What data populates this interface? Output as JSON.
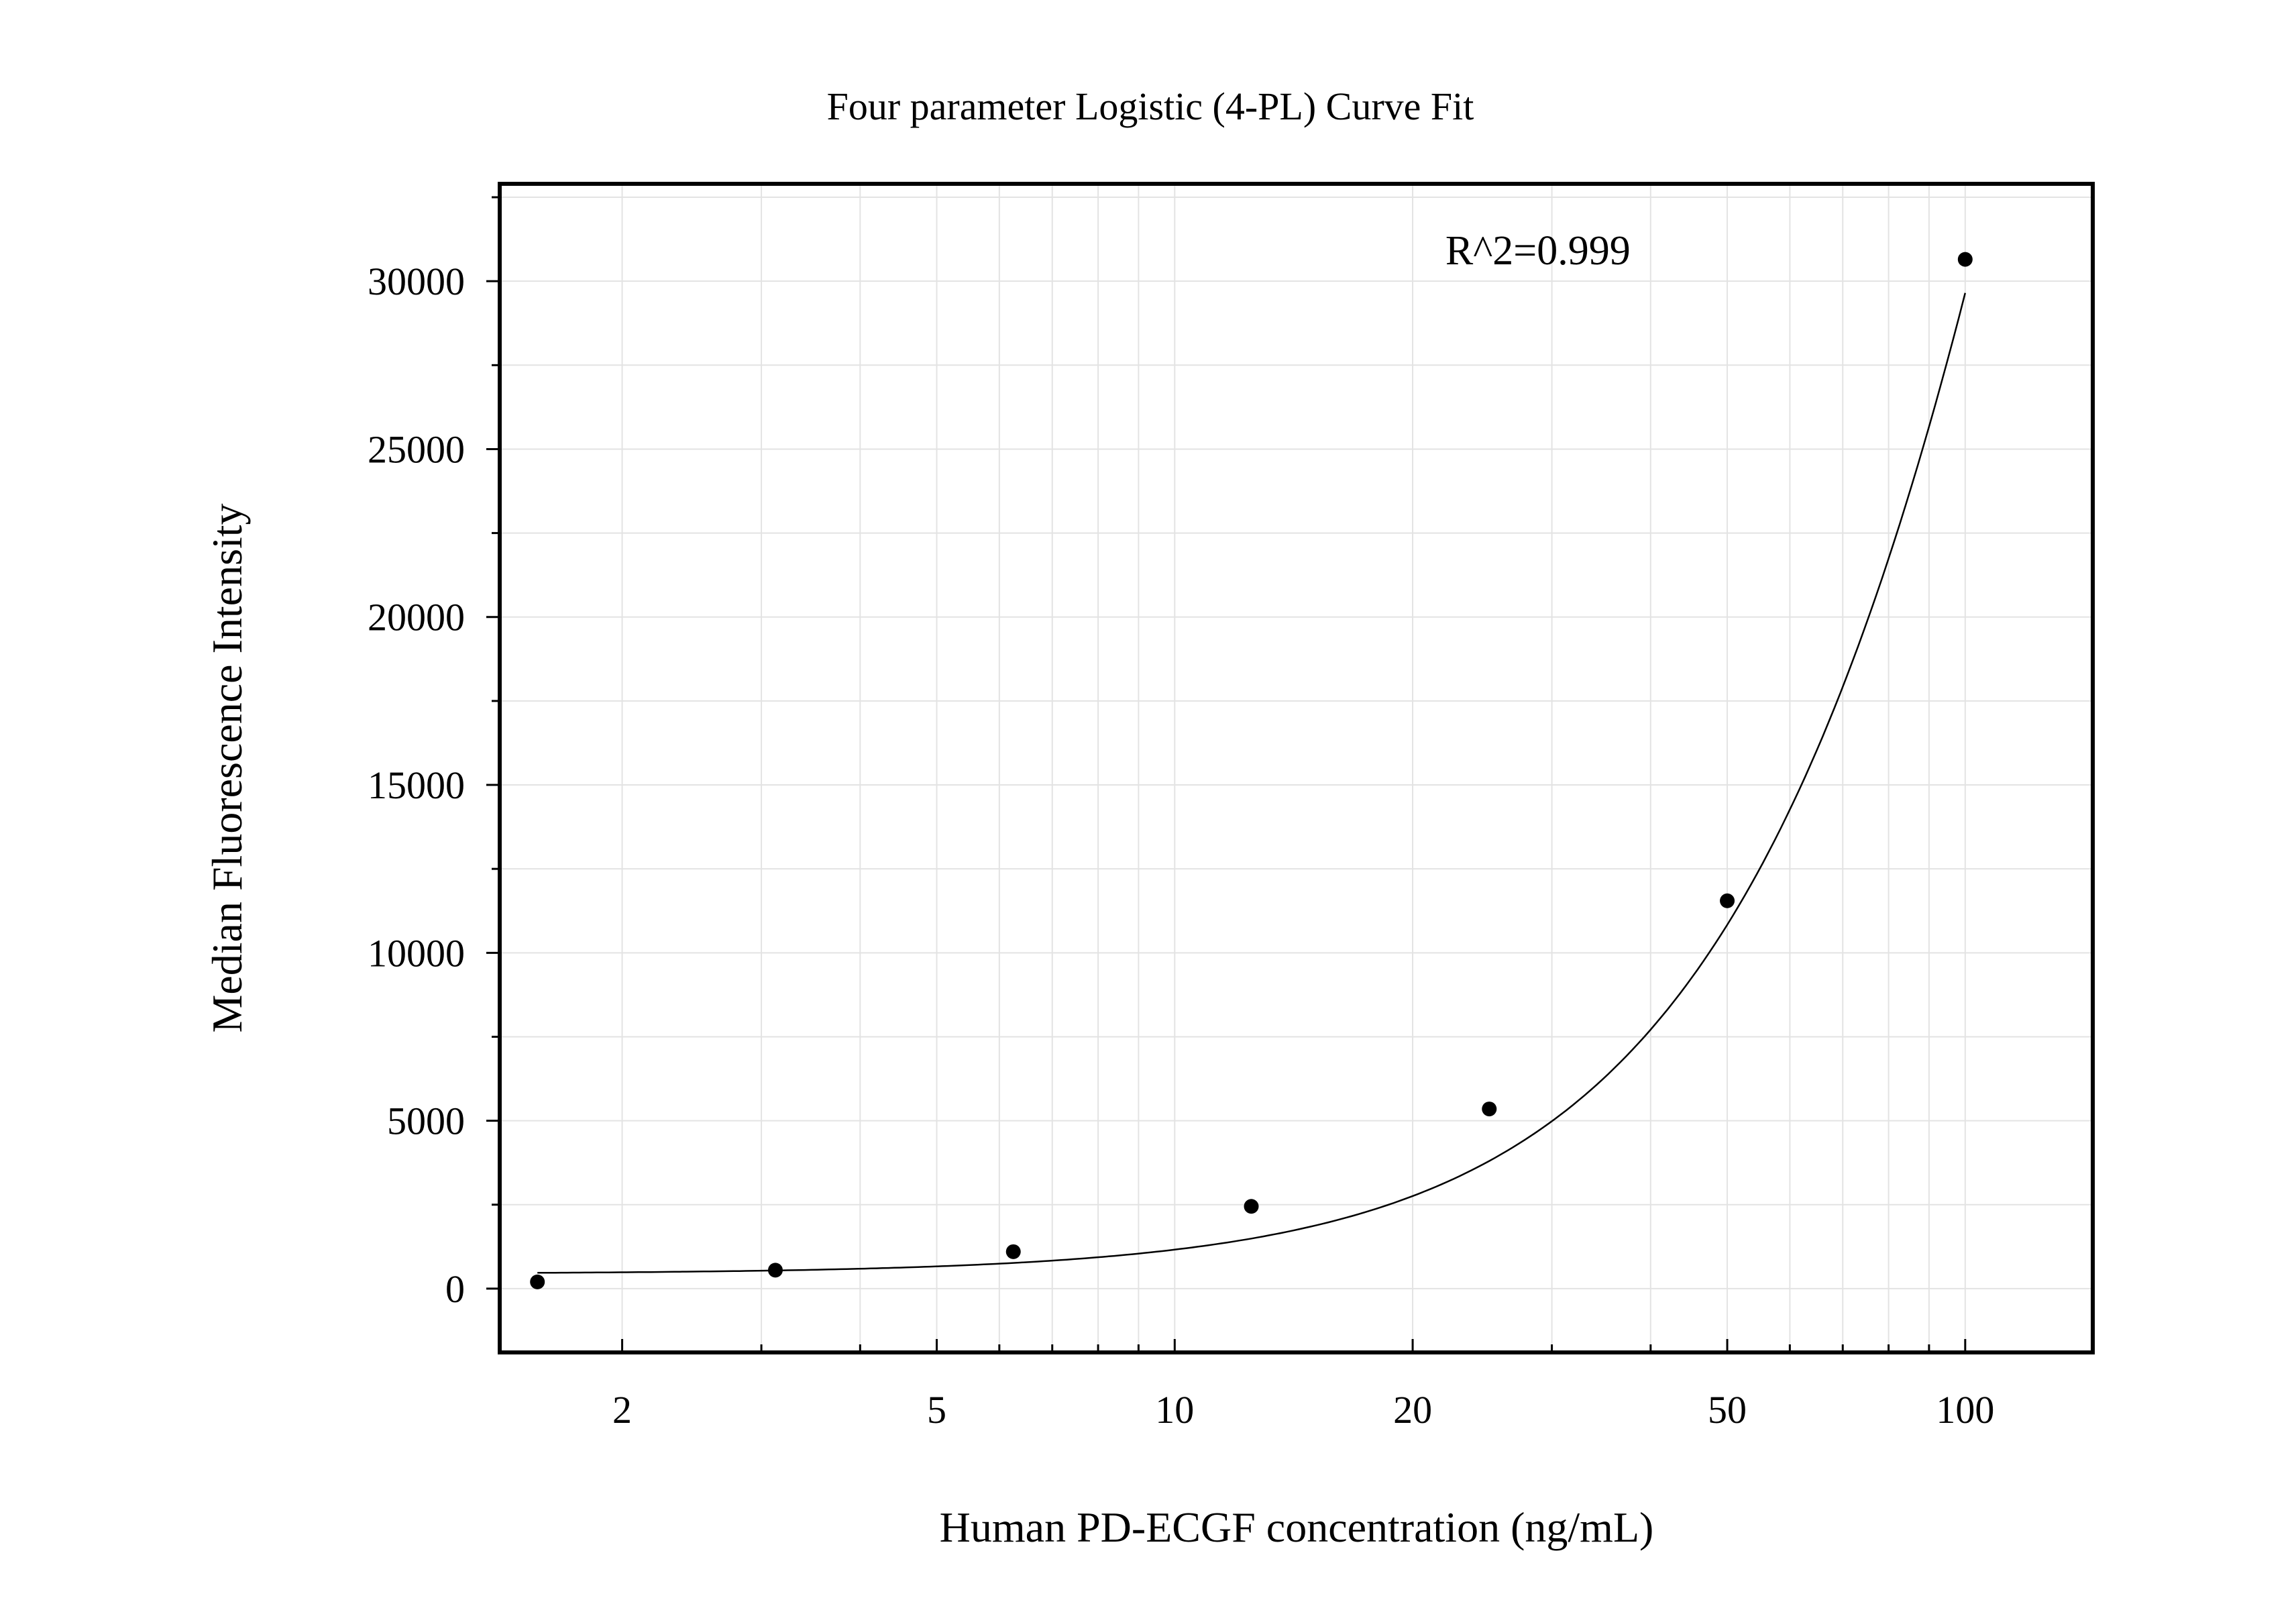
{
  "chart_data": {
    "type": "scatter",
    "title": "Four parameter Logistic (4-PL) Curve Fit",
    "xlabel": "Human PD-ECGF concentration (ng/mL)",
    "ylabel": "Median Fluorescence Intensity",
    "x_scale": "log",
    "xlim": [
      1.4,
      145
    ],
    "ylim": [
      -1900,
      32900
    ],
    "x_ticks": [
      2,
      5,
      10,
      20,
      50,
      100
    ],
    "x_tick_labels": [
      "2",
      "5",
      "10",
      "20",
      "50",
      "100"
    ],
    "y_ticks": [
      0,
      5000,
      10000,
      15000,
      20000,
      25000,
      30000
    ],
    "y_tick_labels": [
      "0",
      "5000",
      "10000",
      "15000",
      "20000",
      "25000",
      "30000"
    ],
    "grid": true,
    "annotations": [
      {
        "text": "R^2=0.999",
        "x": 22,
        "y": 30500
      }
    ],
    "series": [
      {
        "kind": "points",
        "x": [
          1.5625,
          3.125,
          6.25,
          12.5,
          25,
          50,
          100
        ],
        "y": [
          200,
          550,
          1100,
          2450,
          5350,
          11550,
          30650
        ]
      },
      {
        "kind": "fit-curve",
        "model": "4PL",
        "params": {
          "A": 440,
          "B": 1.7,
          "C": 230,
          "D": 150000
        },
        "x_range": [
          1.5625,
          100
        ]
      }
    ]
  }
}
